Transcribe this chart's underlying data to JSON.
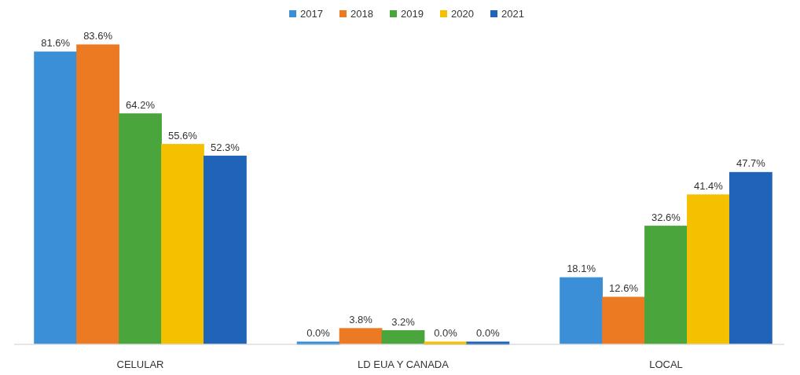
{
  "chart_data": {
    "type": "bar",
    "categories": [
      "CELULAR",
      "LD EUA Y CANADA",
      "LOCAL"
    ],
    "series": [
      {
        "name": "2017",
        "color": "#3a8fd6",
        "values": [
          81.6,
          0.0,
          18.1
        ],
        "value_labels": [
          "81.6%",
          "0.0%",
          "18.1%"
        ]
      },
      {
        "name": "2018",
        "color": "#ec7a22",
        "values": [
          83.6,
          3.8,
          12.6
        ],
        "value_labels": [
          "83.6%",
          "3.8%",
          "12.6%"
        ]
      },
      {
        "name": "2019",
        "color": "#4aa53c",
        "values": [
          64.2,
          3.2,
          32.6
        ],
        "value_labels": [
          "64.2%",
          "3.2%",
          "32.6%"
        ]
      },
      {
        "name": "2020",
        "color": "#f5c000",
        "values": [
          55.6,
          0.0,
          41.4
        ],
        "value_labels": [
          "55.6%",
          "0.0%",
          "41.4%"
        ]
      },
      {
        "name": "2021",
        "color": "#1f64b8",
        "values": [
          52.3,
          0.0,
          47.7
        ],
        "value_labels": [
          "52.3%",
          "0.0%",
          "47.7%"
        ]
      }
    ],
    "legend": "top",
    "grid": false
  }
}
